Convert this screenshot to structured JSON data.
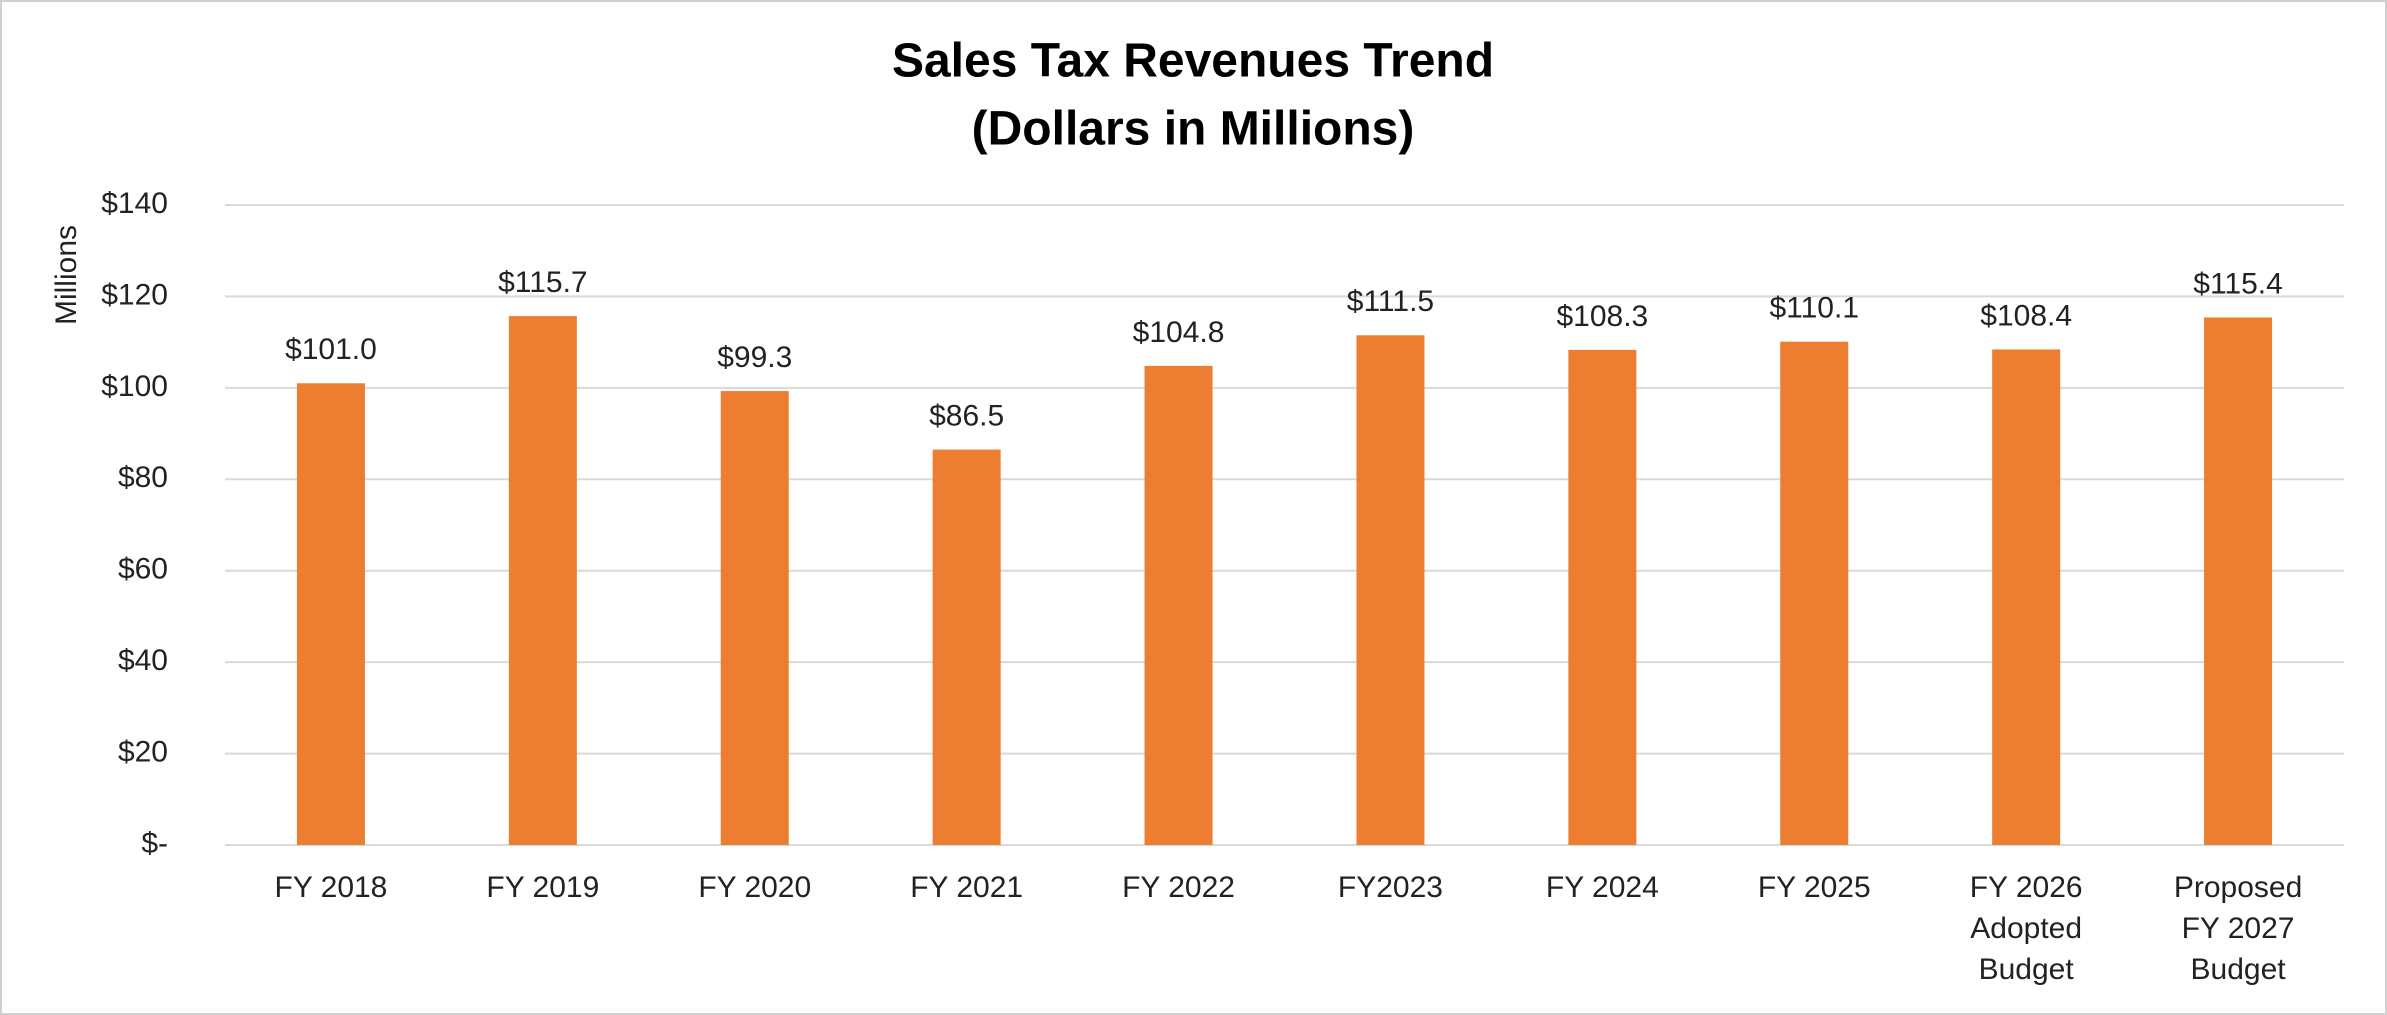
{
  "chart_data": {
    "type": "bar",
    "title": [
      "Sales Tax Revenues Trend",
      "(Dollars in Millions)"
    ],
    "y_label": "Millions",
    "categories": [
      "FY 2018",
      "FY 2019",
      "FY 2020",
      "FY 2021",
      "FY 2022",
      "FY2023",
      "FY 2024",
      "FY 2025",
      "FY 2026\nAdopted\nBudget",
      "Proposed\nFY 2027\nBudget"
    ],
    "values": [
      101.0,
      115.7,
      99.3,
      86.5,
      104.8,
      111.5,
      108.3,
      110.1,
      108.4,
      115.4
    ],
    "value_labels": [
      "$101.0",
      "$115.7",
      "$99.3",
      "$86.5",
      "$104.8",
      "$111.5",
      "$108.3",
      "$110.1",
      "$108.4",
      "$115.4"
    ],
    "color": "#ed7d31",
    "ylim": [
      0,
      140
    ],
    "yticks": [
      {
        "value": 0,
        "label": "$-"
      },
      {
        "value": 20,
        "label": "$20"
      },
      {
        "value": 40,
        "label": "$40"
      },
      {
        "value": 60,
        "label": "$60"
      },
      {
        "value": 80,
        "label": "$80"
      },
      {
        "value": 100,
        "label": "$100"
      },
      {
        "value": 120,
        "label": "$120"
      },
      {
        "value": 140,
        "label": "$140"
      }
    ],
    "grid": true
  }
}
